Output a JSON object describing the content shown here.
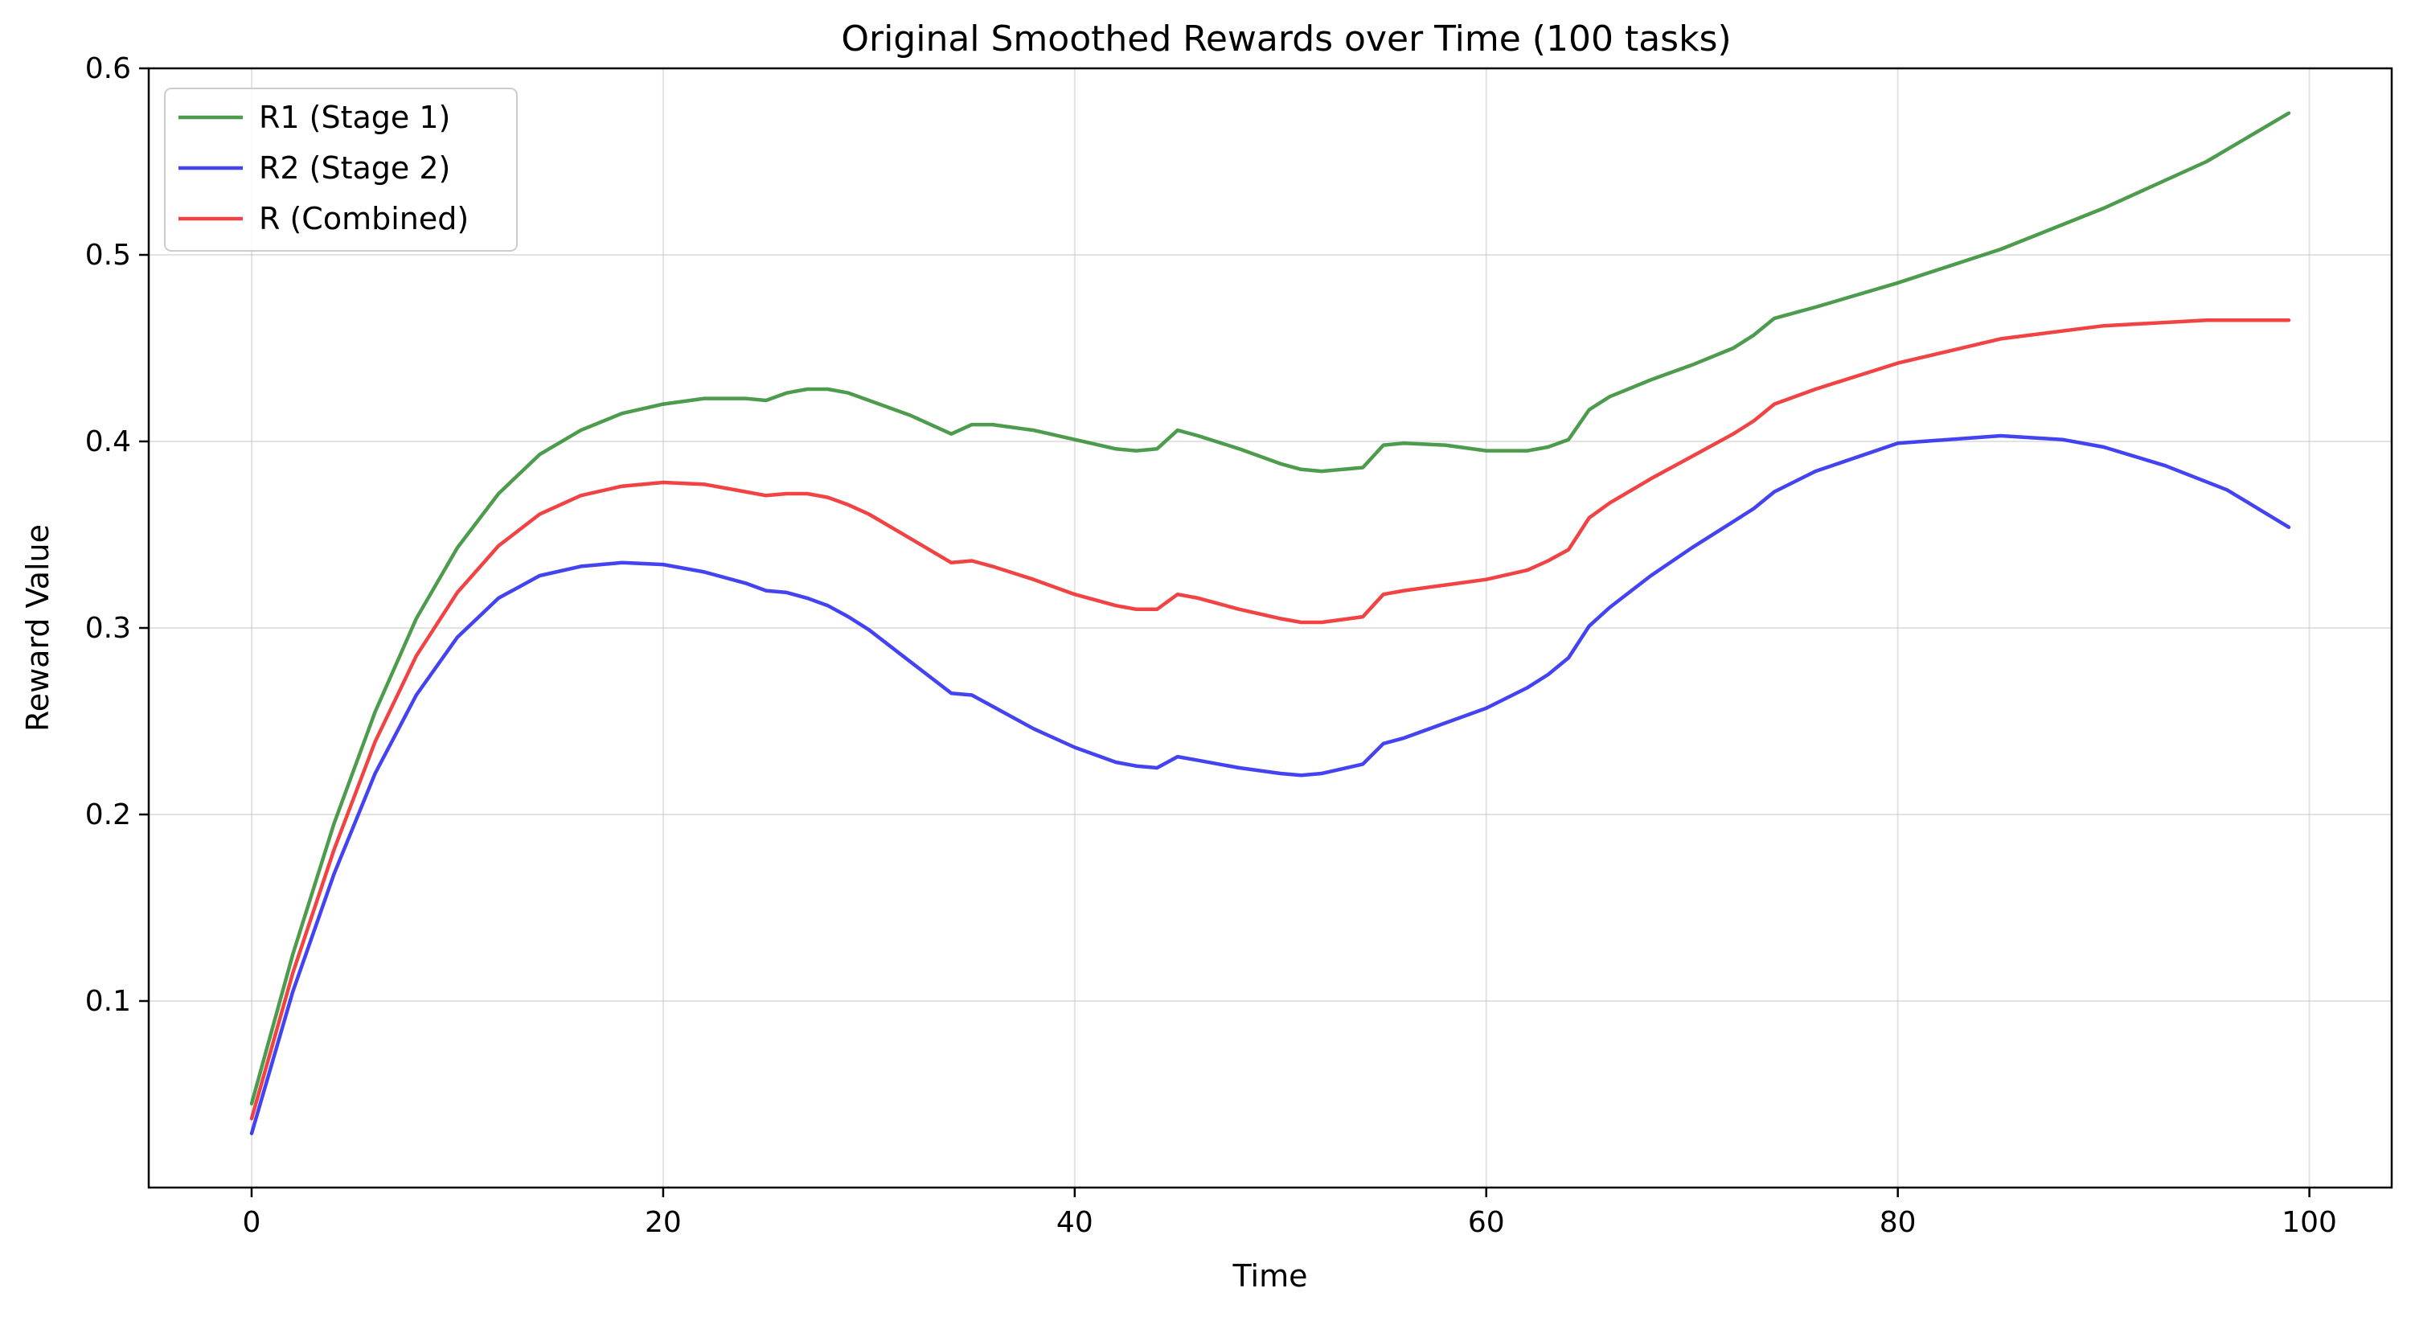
{
  "chart_data": {
    "type": "line",
    "title": "Original Smoothed Rewards over Time (100 tasks)",
    "xlabel": "Time",
    "ylabel": "Reward Value",
    "xlim": [
      -5,
      104
    ],
    "ylim": [
      0.0,
      0.6
    ],
    "xticks": [
      0,
      20,
      40,
      60,
      80,
      100
    ],
    "yticks": [
      0.1,
      0.2,
      0.3,
      0.4,
      0.5,
      0.6
    ],
    "grid": true,
    "legend_position": "top-left",
    "series": [
      {
        "name": "R1 (Stage 1)",
        "color": "#2e8b2e",
        "points": [
          [
            0,
            0.045
          ],
          [
            2,
            0.125
          ],
          [
            4,
            0.195
          ],
          [
            6,
            0.255
          ],
          [
            8,
            0.305
          ],
          [
            10,
            0.343
          ],
          [
            12,
            0.372
          ],
          [
            14,
            0.393
          ],
          [
            16,
            0.406
          ],
          [
            18,
            0.415
          ],
          [
            20,
            0.42
          ],
          [
            22,
            0.423
          ],
          [
            24,
            0.423
          ],
          [
            25,
            0.422
          ],
          [
            26,
            0.426
          ],
          [
            27,
            0.428
          ],
          [
            28,
            0.428
          ],
          [
            29,
            0.426
          ],
          [
            30,
            0.422
          ],
          [
            32,
            0.414
          ],
          [
            34,
            0.404
          ],
          [
            35,
            0.409
          ],
          [
            36,
            0.409
          ],
          [
            38,
            0.406
          ],
          [
            40,
            0.401
          ],
          [
            42,
            0.396
          ],
          [
            43,
            0.395
          ],
          [
            44,
            0.396
          ],
          [
            45,
            0.406
          ],
          [
            46,
            0.403
          ],
          [
            48,
            0.396
          ],
          [
            50,
            0.388
          ],
          [
            51,
            0.385
          ],
          [
            52,
            0.384
          ],
          [
            54,
            0.386
          ],
          [
            55,
            0.398
          ],
          [
            56,
            0.399
          ],
          [
            58,
            0.398
          ],
          [
            60,
            0.395
          ],
          [
            62,
            0.395
          ],
          [
            63,
            0.397
          ],
          [
            64,
            0.401
          ],
          [
            65,
            0.417
          ],
          [
            66,
            0.424
          ],
          [
            68,
            0.433
          ],
          [
            70,
            0.441
          ],
          [
            72,
            0.45
          ],
          [
            73,
            0.457
          ],
          [
            74,
            0.466
          ],
          [
            76,
            0.472
          ],
          [
            80,
            0.485
          ],
          [
            85,
            0.503
          ],
          [
            90,
            0.525
          ],
          [
            95,
            0.55
          ],
          [
            99,
            0.576
          ]
        ]
      },
      {
        "name": "R2 (Stage 2)",
        "color": "#2222ee",
        "points": [
          [
            0,
            0.029
          ],
          [
            2,
            0.105
          ],
          [
            4,
            0.168
          ],
          [
            6,
            0.222
          ],
          [
            8,
            0.264
          ],
          [
            10,
            0.295
          ],
          [
            12,
            0.316
          ],
          [
            14,
            0.328
          ],
          [
            16,
            0.333
          ],
          [
            18,
            0.335
          ],
          [
            20,
            0.334
          ],
          [
            22,
            0.33
          ],
          [
            24,
            0.324
          ],
          [
            25,
            0.32
          ],
          [
            26,
            0.319
          ],
          [
            27,
            0.316
          ],
          [
            28,
            0.312
          ],
          [
            29,
            0.306
          ],
          [
            30,
            0.299
          ],
          [
            32,
            0.282
          ],
          [
            34,
            0.265
          ],
          [
            35,
            0.264
          ],
          [
            36,
            0.258
          ],
          [
            38,
            0.246
          ],
          [
            40,
            0.236
          ],
          [
            42,
            0.228
          ],
          [
            43,
            0.226
          ],
          [
            44,
            0.225
          ],
          [
            45,
            0.231
          ],
          [
            46,
            0.229
          ],
          [
            48,
            0.225
          ],
          [
            50,
            0.222
          ],
          [
            51,
            0.221
          ],
          [
            52,
            0.222
          ],
          [
            54,
            0.227
          ],
          [
            55,
            0.238
          ],
          [
            56,
            0.241
          ],
          [
            58,
            0.249
          ],
          [
            60,
            0.257
          ],
          [
            62,
            0.268
          ],
          [
            63,
            0.275
          ],
          [
            64,
            0.284
          ],
          [
            65,
            0.301
          ],
          [
            66,
            0.311
          ],
          [
            68,
            0.328
          ],
          [
            70,
            0.343
          ],
          [
            72,
            0.357
          ],
          [
            73,
            0.364
          ],
          [
            74,
            0.373
          ],
          [
            76,
            0.384
          ],
          [
            80,
            0.399
          ],
          [
            85,
            0.403
          ],
          [
            88,
            0.401
          ],
          [
            90,
            0.397
          ],
          [
            93,
            0.387
          ],
          [
            96,
            0.374
          ],
          [
            99,
            0.354
          ]
        ]
      },
      {
        "name": "R (Combined)",
        "color": "#ee2222",
        "points": [
          [
            0,
            0.037
          ],
          [
            2,
            0.115
          ],
          [
            4,
            0.181
          ],
          [
            6,
            0.239
          ],
          [
            8,
            0.285
          ],
          [
            10,
            0.319
          ],
          [
            12,
            0.344
          ],
          [
            14,
            0.361
          ],
          [
            16,
            0.371
          ],
          [
            18,
            0.376
          ],
          [
            20,
            0.378
          ],
          [
            22,
            0.377
          ],
          [
            24,
            0.373
          ],
          [
            25,
            0.371
          ],
          [
            26,
            0.372
          ],
          [
            27,
            0.372
          ],
          [
            28,
            0.37
          ],
          [
            29,
            0.366
          ],
          [
            30,
            0.361
          ],
          [
            32,
            0.348
          ],
          [
            34,
            0.335
          ],
          [
            35,
            0.336
          ],
          [
            36,
            0.333
          ],
          [
            38,
            0.326
          ],
          [
            40,
            0.318
          ],
          [
            42,
            0.312
          ],
          [
            43,
            0.31
          ],
          [
            44,
            0.31
          ],
          [
            45,
            0.318
          ],
          [
            46,
            0.316
          ],
          [
            48,
            0.31
          ],
          [
            50,
            0.305
          ],
          [
            51,
            0.303
          ],
          [
            52,
            0.303
          ],
          [
            54,
            0.306
          ],
          [
            55,
            0.318
          ],
          [
            56,
            0.32
          ],
          [
            58,
            0.323
          ],
          [
            60,
            0.326
          ],
          [
            62,
            0.331
          ],
          [
            63,
            0.336
          ],
          [
            64,
            0.342
          ],
          [
            65,
            0.359
          ],
          [
            66,
            0.367
          ],
          [
            68,
            0.38
          ],
          [
            70,
            0.392
          ],
          [
            72,
            0.404
          ],
          [
            73,
            0.411
          ],
          [
            74,
            0.42
          ],
          [
            76,
            0.428
          ],
          [
            80,
            0.442
          ],
          [
            85,
            0.455
          ],
          [
            90,
            0.462
          ],
          [
            95,
            0.465
          ],
          [
            99,
            0.465
          ]
        ]
      }
    ]
  }
}
